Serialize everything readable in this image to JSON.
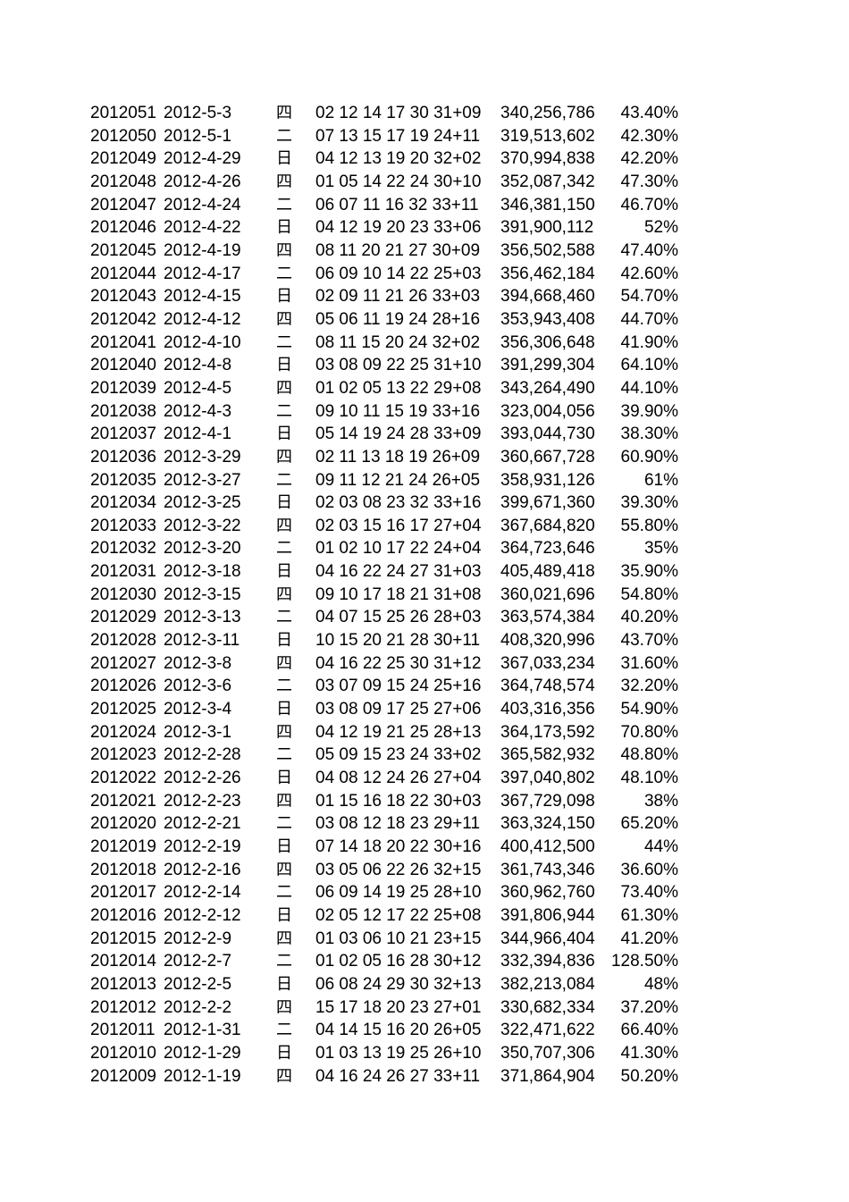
{
  "rows": [
    [
      "2012051",
      "2012-5-3",
      "四",
      "02 12 14 17 30 31+09",
      "340,256,786",
      "43.40%"
    ],
    [
      "2012050",
      "2012-5-1",
      "二",
      "07 13 15 17 19 24+11",
      "319,513,602",
      "42.30%"
    ],
    [
      "2012049",
      "2012-4-29",
      "日",
      "04 12 13 19 20 32+02",
      "370,994,838",
      "42.20%"
    ],
    [
      "2012048",
      "2012-4-26",
      "四",
      "01 05 14 22 24 30+10",
      "352,087,342",
      "47.30%"
    ],
    [
      "2012047",
      "2012-4-24",
      "二",
      "06 07 11 16 32 33+11",
      "346,381,150",
      "46.70%"
    ],
    [
      "2012046",
      "2012-4-22",
      "日",
      "04 12 19 20 23 33+06",
      "391,900,112",
      "52%"
    ],
    [
      "2012045",
      "2012-4-19",
      "四",
      "08 11 20 21 27 30+09",
      "356,502,588",
      "47.40%"
    ],
    [
      "2012044",
      "2012-4-17",
      "二",
      "06 09 10 14 22 25+03",
      "356,462,184",
      "42.60%"
    ],
    [
      "2012043",
      "2012-4-15",
      "日",
      "02 09 11 21 26 33+03",
      "394,668,460",
      "54.70%"
    ],
    [
      "2012042",
      "2012-4-12",
      "四",
      "05 06 11 19 24 28+16",
      "353,943,408",
      "44.70%"
    ],
    [
      "2012041",
      "2012-4-10",
      "二",
      "08 11 15 20 24 32+02",
      "356,306,648",
      "41.90%"
    ],
    [
      "2012040",
      "2012-4-8",
      "日",
      "03 08 09 22 25 31+10",
      "391,299,304",
      "64.10%"
    ],
    [
      "2012039",
      "2012-4-5",
      "四",
      "01 02 05 13 22 29+08",
      "343,264,490",
      "44.10%"
    ],
    [
      "2012038",
      "2012-4-3",
      "二",
      "09 10 11 15 19 33+16",
      "323,004,056",
      "39.90%"
    ],
    [
      "2012037",
      "2012-4-1",
      "日",
      "05 14 19 24 28 33+09",
      "393,044,730",
      "38.30%"
    ],
    [
      "2012036",
      "2012-3-29",
      "四",
      "02 11 13 18 19 26+09",
      "360,667,728",
      "60.90%"
    ],
    [
      "2012035",
      "2012-3-27",
      "二",
      "09 11 12 21 24 26+05",
      "358,931,126",
      "61%"
    ],
    [
      "2012034",
      "2012-3-25",
      "日",
      "02 03 08 23 32 33+16",
      "399,671,360",
      "39.30%"
    ],
    [
      "2012033",
      "2012-3-22",
      "四",
      "02 03 15 16 17 27+04",
      "367,684,820",
      "55.80%"
    ],
    [
      "2012032",
      "2012-3-20",
      "二",
      "01 02 10 17 22 24+04",
      "364,723,646",
      "35%"
    ],
    [
      "2012031",
      "2012-3-18",
      "日",
      "04 16 22 24 27 31+03",
      "405,489,418",
      "35.90%"
    ],
    [
      "2012030",
      "2012-3-15",
      "四",
      "09 10 17 18 21 31+08",
      "360,021,696",
      "54.80%"
    ],
    [
      "2012029",
      "2012-3-13",
      "二",
      "04 07 15 25 26 28+03",
      "363,574,384",
      "40.20%"
    ],
    [
      "2012028",
      "2012-3-11",
      "日",
      "10 15 20 21 28 30+11",
      "408,320,996",
      "43.70%"
    ],
    [
      "2012027",
      "2012-3-8",
      "四",
      "04 16 22 25 30 31+12",
      "367,033,234",
      "31.60%"
    ],
    [
      "2012026",
      "2012-3-6",
      "二",
      "03 07 09 15 24 25+16",
      "364,748,574",
      "32.20%"
    ],
    [
      "2012025",
      "2012-3-4",
      "日",
      "03 08 09 17 25 27+06",
      "403,316,356",
      "54.90%"
    ],
    [
      "2012024",
      "2012-3-1",
      "四",
      "04 12 19 21 25 28+13",
      "364,173,592",
      "70.80%"
    ],
    [
      "2012023",
      "2012-2-28",
      "二",
      "05 09 15 23 24 33+02",
      "365,582,932",
      "48.80%"
    ],
    [
      "2012022",
      "2012-2-26",
      "日",
      "04 08 12 24 26 27+04",
      "397,040,802",
      "48.10%"
    ],
    [
      "2012021",
      "2012-2-23",
      "四",
      "01 15 16 18 22 30+03",
      "367,729,098",
      "38%"
    ],
    [
      "2012020",
      "2012-2-21",
      "二",
      "03 08 12 18 23 29+11",
      "363,324,150",
      "65.20%"
    ],
    [
      "2012019",
      "2012-2-19",
      "日",
      "07 14 18 20 22 30+16",
      "400,412,500",
      "44%"
    ],
    [
      "2012018",
      "2012-2-16",
      "四",
      "03 05 06 22 26 32+15",
      "361,743,346",
      "36.60%"
    ],
    [
      "2012017",
      "2012-2-14",
      "二",
      "06 09 14 19 25 28+10",
      "360,962,760",
      "73.40%"
    ],
    [
      "2012016",
      "2012-2-12",
      "日",
      "02 05 12 17 22 25+08",
      "391,806,944",
      "61.30%"
    ],
    [
      "2012015",
      "2012-2-9",
      "四",
      "01 03 06 10 21 23+15",
      "344,966,404",
      "41.20%"
    ],
    [
      "2012014",
      "2012-2-7",
      "二",
      "01 02 05 16 28 30+12",
      "332,394,836",
      "128.50%"
    ],
    [
      "2012013",
      "2012-2-5",
      "日",
      "06 08 24 29 30 32+13",
      "382,213,084",
      "48%"
    ],
    [
      "2012012",
      "2012-2-2",
      "四",
      "15 17 18 20 23 27+01",
      "330,682,334",
      "37.20%"
    ],
    [
      "2012011",
      "2012-1-31",
      "二",
      "04 14 15 16 20 26+05",
      "322,471,622",
      "66.40%"
    ],
    [
      "2012010",
      "2012-1-29",
      "日",
      "01 03 13 19 25 26+10",
      "350,707,306",
      "41.30%"
    ],
    [
      "2012009",
      "2012-1-19",
      "四",
      "04 16 24 26 27 33+11",
      "371,864,904",
      "50.20%"
    ]
  ]
}
